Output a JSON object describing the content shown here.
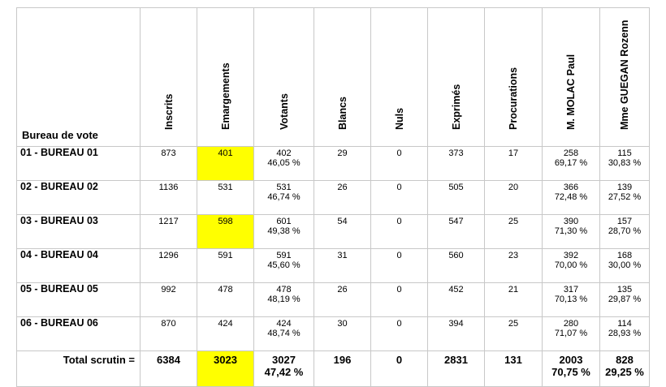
{
  "headers": {
    "bureau": "Bureau de vote",
    "inscrits": "Inscrits",
    "emargements": "Emargements",
    "votants": "Votants",
    "blancs": "Blancs",
    "nuls": "Nuls",
    "exprimes": "Exprimés",
    "procurations": "Procurations",
    "molac": "M. MOLAC Paul",
    "guegan": "Mme GUEGAN Rozenn"
  },
  "highlight_color": "#ffff00",
  "rows": [
    {
      "bureau": "01 - BUREAU 01",
      "inscrits": "873",
      "emargements": "401",
      "emargements_highlight": true,
      "votants": "402",
      "votants_pct": "46,05 %",
      "blancs": "29",
      "nuls": "0",
      "exprimes": "373",
      "procurations": "17",
      "molac": "258",
      "molac_pct": "69,17 %",
      "guegan": "115",
      "guegan_pct": "30,83 %"
    },
    {
      "bureau": "02 - BUREAU 02",
      "inscrits": "1136",
      "emargements": "531",
      "emargements_highlight": false,
      "votants": "531",
      "votants_pct": "46,74 %",
      "blancs": "26",
      "nuls": "0",
      "exprimes": "505",
      "procurations": "20",
      "molac": "366",
      "molac_pct": "72,48 %",
      "guegan": "139",
      "guegan_pct": "27,52 %"
    },
    {
      "bureau": "03 - BUREAU 03",
      "inscrits": "1217",
      "emargements": "598",
      "emargements_highlight": true,
      "votants": "601",
      "votants_pct": "49,38 %",
      "blancs": "54",
      "nuls": "0",
      "exprimes": "547",
      "procurations": "25",
      "molac": "390",
      "molac_pct": "71,30 %",
      "guegan": "157",
      "guegan_pct": "28,70 %"
    },
    {
      "bureau": "04 - BUREAU 04",
      "inscrits": "1296",
      "emargements": "591",
      "emargements_highlight": false,
      "votants": "591",
      "votants_pct": "45,60 %",
      "blancs": "31",
      "nuls": "0",
      "exprimes": "560",
      "procurations": "23",
      "molac": "392",
      "molac_pct": "70,00 %",
      "guegan": "168",
      "guegan_pct": "30,00 %"
    },
    {
      "bureau": "05 - BUREAU 05",
      "inscrits": "992",
      "emargements": "478",
      "emargements_highlight": false,
      "votants": "478",
      "votants_pct": "48,19 %",
      "blancs": "26",
      "nuls": "0",
      "exprimes": "452",
      "procurations": "21",
      "molac": "317",
      "molac_pct": "70,13 %",
      "guegan": "135",
      "guegan_pct": "29,87 %"
    },
    {
      "bureau": "06 - BUREAU 06",
      "inscrits": "870",
      "emargements": "424",
      "emargements_highlight": false,
      "votants": "424",
      "votants_pct": "48,74 %",
      "blancs": "30",
      "nuls": "0",
      "exprimes": "394",
      "procurations": "25",
      "molac": "280",
      "molac_pct": "71,07 %",
      "guegan": "114",
      "guegan_pct": "28,93 %"
    }
  ],
  "total": {
    "label": "Total scrutin =",
    "inscrits": "6384",
    "emargements": "3023",
    "emargements_highlight": true,
    "votants": "3027",
    "votants_pct": "47,42 %",
    "blancs": "196",
    "nuls": "0",
    "exprimes": "2831",
    "procurations": "131",
    "molac": "2003",
    "molac_pct": "70,75 %",
    "guegan": "828",
    "guegan_pct": "29,25 %"
  }
}
